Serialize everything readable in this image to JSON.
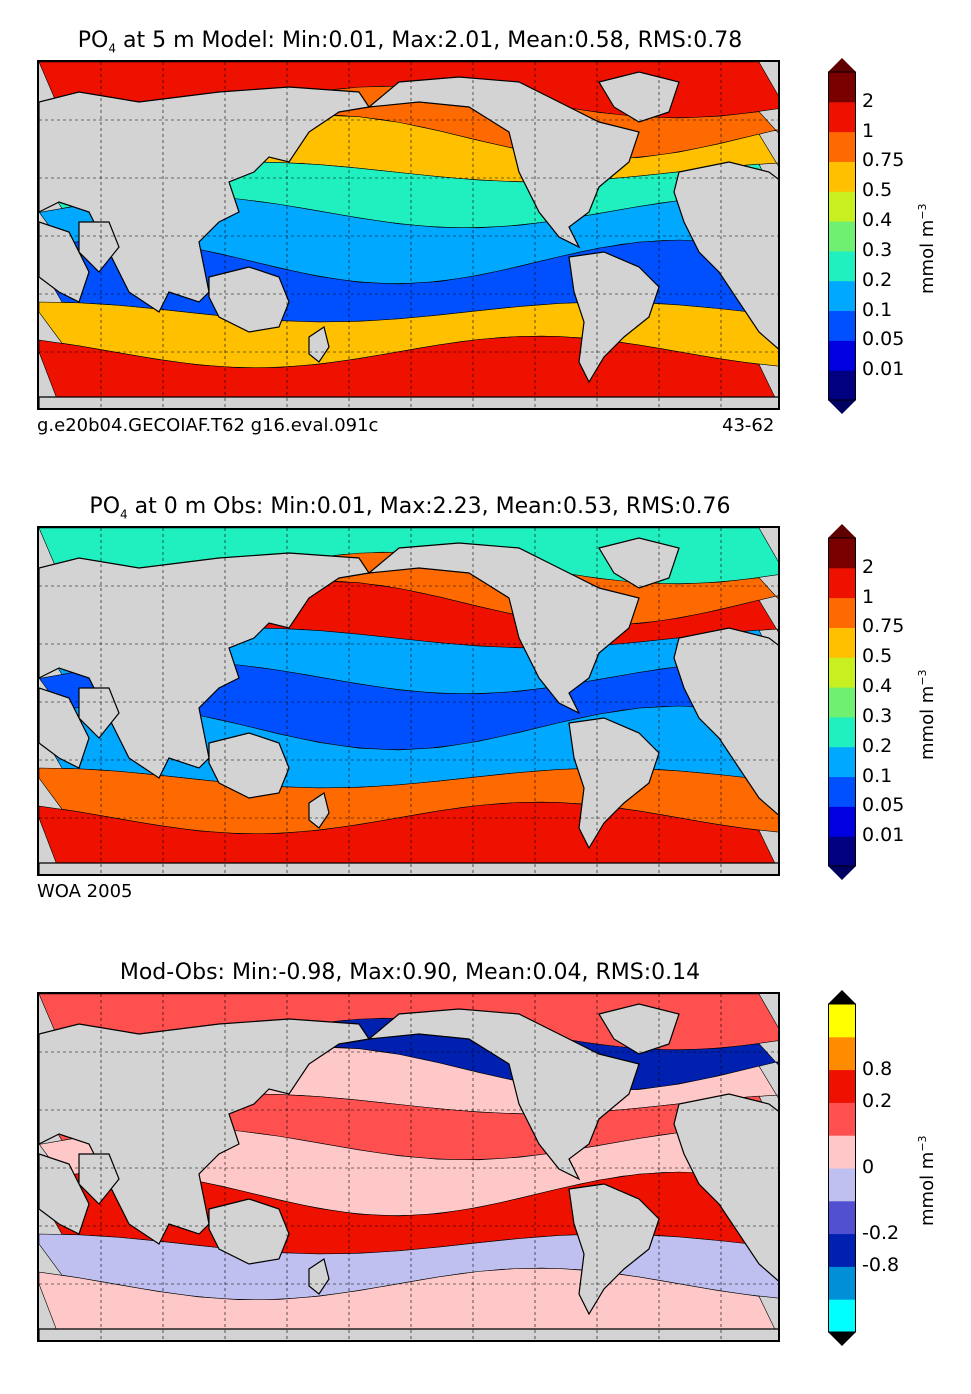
{
  "panels": [
    {
      "title_prefix": "PO",
      "title_sub": "4",
      "title_rest": " at 5 m Model: Min:0.01, Max:2.01, Mean:0.58, RMS:0.78",
      "caption_left": "g.e20b04.GECOIAF.T62 g16.eval.091c",
      "caption_right": "43-62",
      "colorbar": {
        "unit": "mmol m",
        "unit_sup": "−3",
        "labels": [
          "2",
          "1",
          "0.75",
          "0.5",
          "0.4",
          "0.3",
          "0.2",
          "0.1",
          "0.05",
          "0.01"
        ],
        "colors": [
          "#000080",
          "#0000e0",
          "#0050ff",
          "#00a8ff",
          "#20f0c0",
          "#70f070",
          "#c8f020",
          "#ffc000",
          "#ff6a00",
          "#ee1100",
          "#7a0000"
        ],
        "extend_low": "#000060",
        "extend_high": "#600000"
      },
      "map": {
        "ocean_bands": [
          "#ee1100",
          "#ff6a00",
          "#ffc000",
          "#20f0c0",
          "#00a8ff",
          "#0050ff",
          "#ffc000",
          "#ee1100"
        ],
        "land_color": "#d3d3d3"
      }
    },
    {
      "title_prefix": "PO",
      "title_sub": "4",
      "title_rest": " at 0 m Obs: Min:0.01, Max:2.23, Mean:0.53, RMS:0.76",
      "caption_left": "WOA 2005",
      "caption_right": "",
      "colorbar": {
        "unit": "mmol m",
        "unit_sup": "−3",
        "labels": [
          "2",
          "1",
          "0.75",
          "0.5",
          "0.4",
          "0.3",
          "0.2",
          "0.1",
          "0.05",
          "0.01"
        ],
        "colors": [
          "#000080",
          "#0000e0",
          "#0050ff",
          "#00a8ff",
          "#20f0c0",
          "#70f070",
          "#c8f020",
          "#ffc000",
          "#ff6a00",
          "#ee1100",
          "#7a0000"
        ],
        "extend_low": "#000060",
        "extend_high": "#600000"
      },
      "map": {
        "ocean_bands": [
          "#20f0c0",
          "#ff6a00",
          "#ee1100",
          "#00a8ff",
          "#0050ff",
          "#00a8ff",
          "#ff6a00",
          "#ee1100"
        ],
        "land_color": "#d3d3d3"
      }
    },
    {
      "title_prefix": "",
      "title_sub": "",
      "title_rest": "Mod-Obs: Min:-0.98, Max:0.90, Mean:0.04, RMS:0.14",
      "caption_left": "",
      "caption_right": "",
      "colorbar": {
        "unit": "mmol m",
        "unit_sup": "−3",
        "labels": [
          "0.8",
          "0.2",
          "0",
          "-0.2",
          "-0.8"
        ],
        "colors": [
          "#00ffff",
          "#0090d8",
          "#0020b0",
          "#5050d0",
          "#c0c0f0",
          "#ffc8c8",
          "#ff5050",
          "#ee1100",
          "#ff8c00",
          "#ffff00"
        ],
        "extend_low": "#000000",
        "extend_high": "#000000"
      },
      "map": {
        "ocean_bands": [
          "#ff5050",
          "#0020b0",
          "#ffc8c8",
          "#ff5050",
          "#ffc8c8",
          "#ee1100",
          "#c0c0f0",
          "#ffc8c8"
        ],
        "land_color": "#d3d3d3"
      }
    }
  ]
}
